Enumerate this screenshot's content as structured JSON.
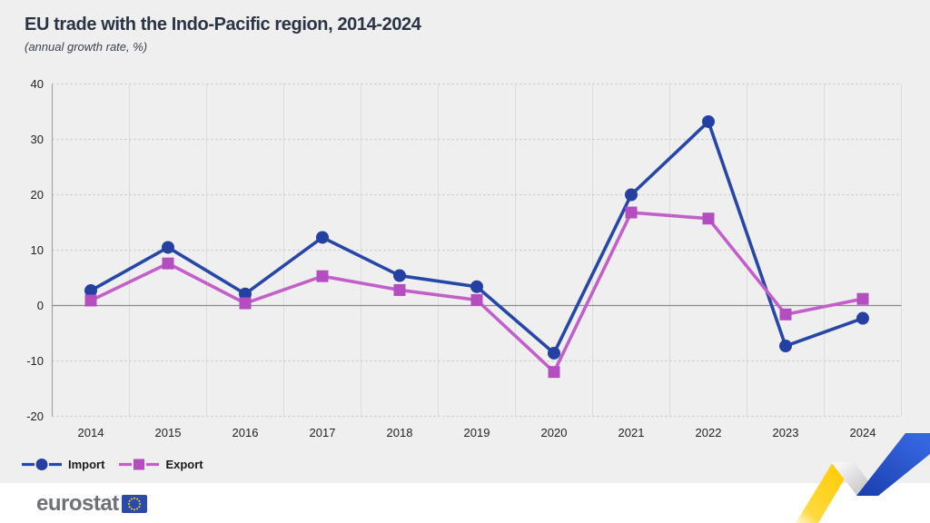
{
  "header": {
    "title": "EU trade with the Indo-Pacific region, 2014-2024",
    "subtitle": "(annual growth rate, %)"
  },
  "chart_data": {
    "type": "line",
    "title": "EU trade with the Indo-Pacific region, 2014-2024",
    "subtitle": "(annual growth rate, %)",
    "categories": [
      "2014",
      "2015",
      "2016",
      "2017",
      "2018",
      "2019",
      "2020",
      "2021",
      "2022",
      "2023",
      "2024"
    ],
    "series": [
      {
        "name": "Import",
        "marker": "circle",
        "line_color": "#2747A8",
        "marker_color": "#2440A0",
        "values": [
          2.7,
          10.5,
          2.1,
          12.3,
          5.4,
          3.4,
          -8.6,
          20.0,
          33.2,
          -7.3,
          -2.3
        ]
      },
      {
        "name": "Export",
        "marker": "square",
        "line_color": "#C35FC9",
        "marker_color": "#B44EC0",
        "values": [
          0.9,
          7.6,
          0.4,
          5.3,
          2.8,
          1.0,
          -12.0,
          16.8,
          15.7,
          -1.6,
          1.2
        ]
      }
    ],
    "ylim": [
      -20,
      40
    ],
    "ytick_step": 10,
    "grid": "horizontal dotted gridlines, vertical solid band-boundary gridlines, solid zero line",
    "legend_position": "bottom-left",
    "xlabel": "",
    "ylabel": ""
  },
  "branding": {
    "logo_text": "eurostat",
    "flag_icon": "eu-flag"
  },
  "colors": {
    "background": "#EFEFEF",
    "footer_background": "#FFFFFF",
    "title_text": "#2B3445",
    "axis_text": "#222222",
    "import_blue": "#2747A8",
    "export_magenta": "#B44EC0",
    "zero_line": "#8A8A8A",
    "axis_line": "#A3A3A8",
    "grid_dotted": "#C9C9C9",
    "grid_vertical": "#DCDCDC",
    "ribbon_yellow": "#FFCC00",
    "ribbon_blue": "#2353D6",
    "logo_gray": "#6E7276",
    "flag_blue": "#2B4BA8",
    "flag_stars": "#FFD617"
  }
}
